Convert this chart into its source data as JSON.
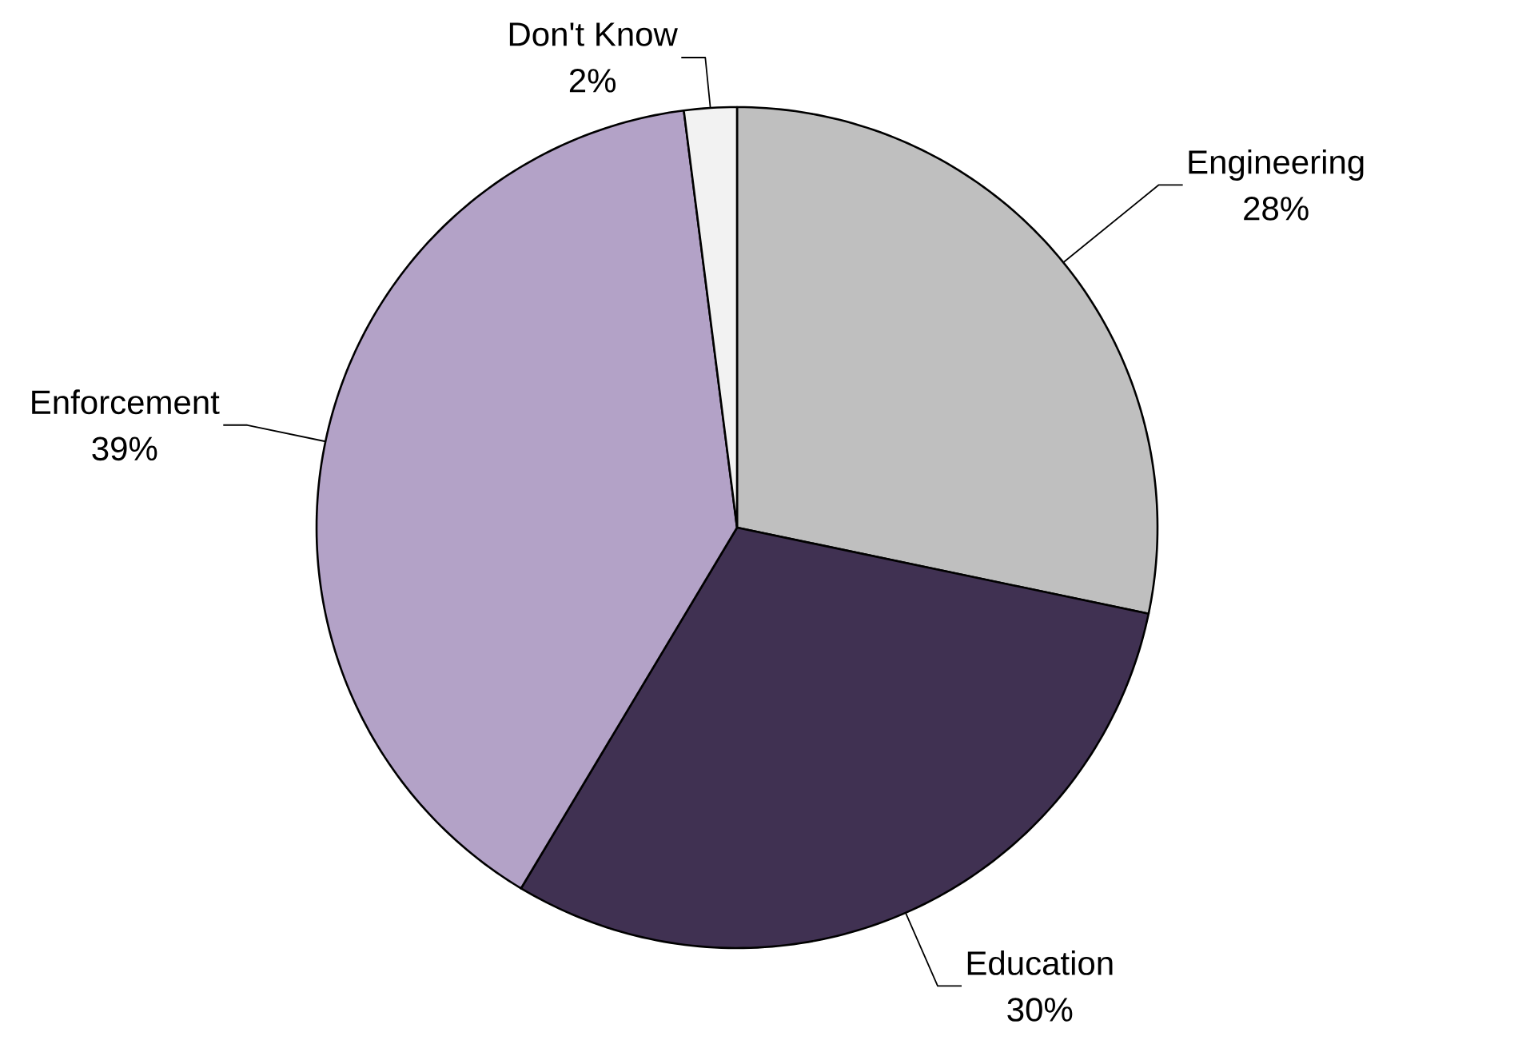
{
  "chart_data": {
    "type": "pie",
    "categories": [
      "Engineering",
      "Education",
      "Enforcement",
      "Don't Know"
    ],
    "values": [
      28,
      30,
      39,
      2
    ],
    "value_labels": [
      "28%",
      "30%",
      "39%",
      "2%"
    ],
    "colors": [
      "#bfbfbf",
      "#403152",
      "#b3a2c7",
      "#f2f2f2"
    ]
  }
}
